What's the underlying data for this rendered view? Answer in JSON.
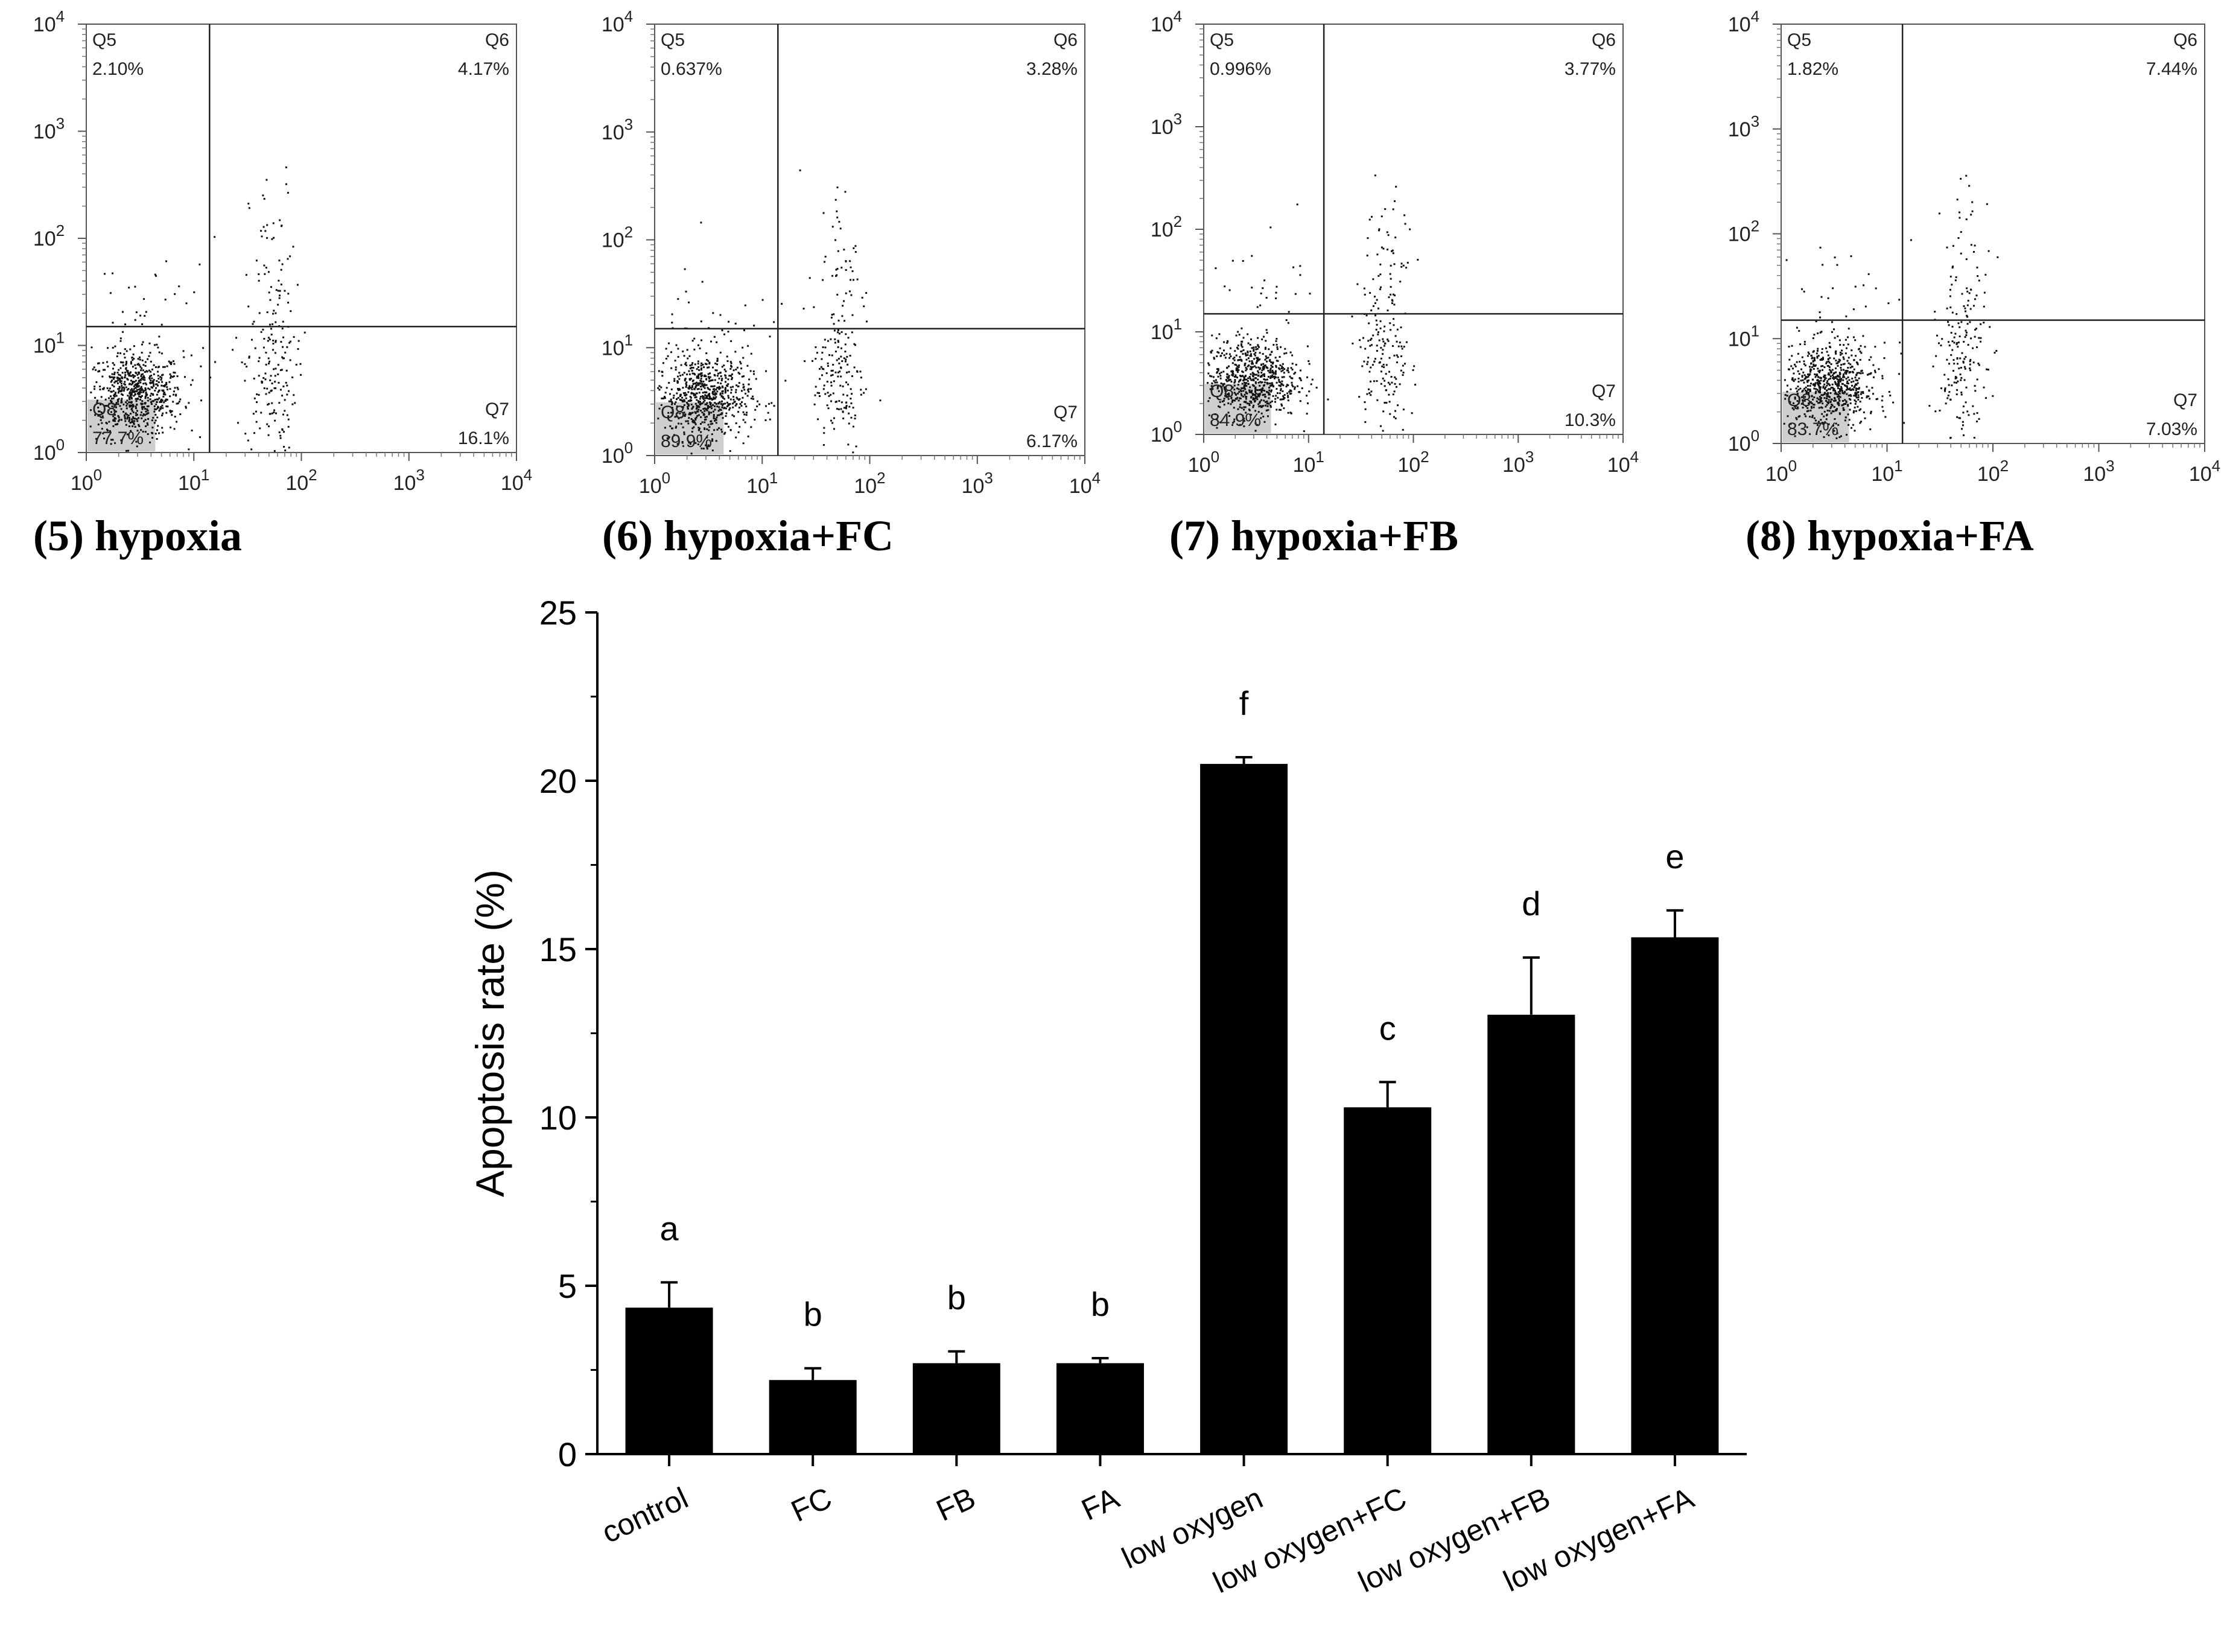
{
  "chart_data": [
    {
      "type": "scatter",
      "caption": "(5) hypoxia",
      "x_ticks": [
        "10",
        "10",
        "10",
        "10",
        "10"
      ],
      "x_tick_exponents": [
        "0",
        "1",
        "2",
        "3",
        "4"
      ],
      "y_ticks": [
        "10",
        "10",
        "10",
        "10",
        "10"
      ],
      "y_tick_exponents": [
        "0",
        "1",
        "2",
        "3",
        "4"
      ],
      "xlim": [
        1,
        10000
      ],
      "ylim": [
        1,
        10000
      ],
      "gate": {
        "x": 14,
        "y": 15
      },
      "quadrants": [
        {
          "label": "Q5",
          "value": "2.10%"
        },
        {
          "label": "Q6",
          "value": "4.17%"
        },
        {
          "label": "Q7",
          "value": "16.1%"
        },
        {
          "label": "Q8",
          "value": "77.7%"
        }
      ]
    },
    {
      "type": "scatter",
      "caption": "(6) hypoxia+FC",
      "x_ticks": [
        "10",
        "10",
        "10",
        "10",
        "10"
      ],
      "x_tick_exponents": [
        "0",
        "1",
        "2",
        "3",
        "4"
      ],
      "y_ticks": [
        "10",
        "10",
        "10",
        "10",
        "10"
      ],
      "y_tick_exponents": [
        "0",
        "1",
        "2",
        "3",
        "4"
      ],
      "xlim": [
        1,
        10000
      ],
      "ylim": [
        1,
        10000
      ],
      "gate": {
        "x": 14,
        "y": 15
      },
      "quadrants": [
        {
          "label": "Q5",
          "value": "0.637%"
        },
        {
          "label": "Q6",
          "value": "3.28%"
        },
        {
          "label": "Q7",
          "value": "6.17%"
        },
        {
          "label": "Q8",
          "value": "89.9%"
        }
      ]
    },
    {
      "type": "scatter",
      "caption": "(7) hypoxia+FB",
      "x_ticks": [
        "10",
        "10",
        "10",
        "10",
        "10"
      ],
      "x_tick_exponents": [
        "0",
        "1",
        "2",
        "3",
        "4"
      ],
      "y_ticks": [
        "10",
        "10",
        "10",
        "10",
        "10"
      ],
      "y_tick_exponents": [
        "0",
        "1",
        "2",
        "3",
        "4"
      ],
      "xlim": [
        1,
        10000
      ],
      "ylim": [
        1,
        10000
      ],
      "gate": {
        "x": 14,
        "y": 15
      },
      "quadrants": [
        {
          "label": "Q5",
          "value": "0.996%"
        },
        {
          "label": "Q6",
          "value": "3.77%"
        },
        {
          "label": "Q7",
          "value": "10.3%"
        },
        {
          "label": "Q8",
          "value": "84.9%"
        }
      ]
    },
    {
      "type": "scatter",
      "caption": "(8) hypoxia+FA",
      "x_ticks": [
        "10",
        "10",
        "10",
        "10",
        "10"
      ],
      "x_tick_exponents": [
        "0",
        "1",
        "2",
        "3",
        "4"
      ],
      "y_ticks": [
        "10",
        "10",
        "10",
        "10",
        "10"
      ],
      "y_tick_exponents": [
        "0",
        "1",
        "2",
        "3",
        "4"
      ],
      "xlim": [
        1,
        10000
      ],
      "ylim": [
        1,
        10000
      ],
      "gate": {
        "x": 14,
        "y": 15
      },
      "quadrants": [
        {
          "label": "Q5",
          "value": "1.82%"
        },
        {
          "label": "Q6",
          "value": "7.44%"
        },
        {
          "label": "Q7",
          "value": "7.03%"
        },
        {
          "label": "Q8",
          "value": "83.7%"
        }
      ]
    },
    {
      "type": "bar",
      "title": "",
      "xlabel": "",
      "ylabel": "Apoptosis rate (%)",
      "ylim": [
        0,
        25
      ],
      "y_ticks": [
        "0",
        "5",
        "10",
        "15",
        "20",
        "25"
      ],
      "categories": [
        "control",
        "FC",
        "FB",
        "FA",
        "low oxygen",
        "low oxygen+FC",
        "low oxygen+FB",
        "low oxygen+FA"
      ],
      "values": [
        4.35,
        2.2,
        2.7,
        2.7,
        20.5,
        10.3,
        13.05,
        15.35
      ],
      "errors": [
        0.75,
        0.35,
        0.35,
        0.15,
        0.2,
        0.75,
        1.7,
        0.8
      ],
      "significance": [
        "a",
        "b",
        "b",
        "b",
        "f",
        "c",
        "d",
        "e"
      ],
      "bar_color": "#000000",
      "grid": false
    }
  ]
}
